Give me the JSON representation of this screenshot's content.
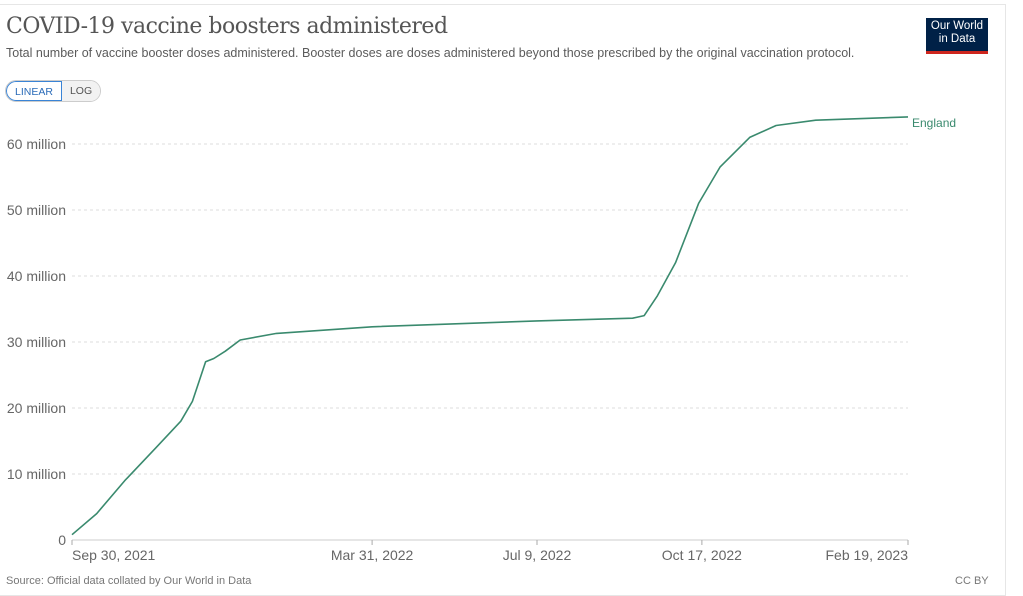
{
  "header": {
    "title": "COVID-19 vaccine boosters administered",
    "subtitle": "Total number of vaccine booster doses administered. Booster doses are doses administered beyond those prescribed by the original vaccination protocol.",
    "logo_line1": "Our World",
    "logo_line2": "in Data"
  },
  "controls": {
    "linear": "LINEAR",
    "log": "LOG"
  },
  "footer": {
    "source": "Source: Official data collated by Our World in Data",
    "license": "CC BY"
  },
  "colors": {
    "series": "#3a8a6e",
    "grid": "#dddddd"
  },
  "chart_data": {
    "type": "line",
    "title": "COVID-19 vaccine boosters administered",
    "xlabel": "",
    "ylabel": "",
    "xlim": [
      "2021-09-30",
      "2023-02-19"
    ],
    "ylim": [
      0,
      64500000
    ],
    "y_ticks": [
      {
        "v": 0,
        "label": "0"
      },
      {
        "v": 10000000,
        "label": "10 million"
      },
      {
        "v": 20000000,
        "label": "20 million"
      },
      {
        "v": 30000000,
        "label": "30 million"
      },
      {
        "v": 40000000,
        "label": "40 million"
      },
      {
        "v": 50000000,
        "label": "50 million"
      },
      {
        "v": 60000000,
        "label": "60 million"
      }
    ],
    "x_ticks": [
      {
        "d": "2021-09-30",
        "label": "Sep 30, 2021"
      },
      {
        "d": "2022-03-31",
        "label": "Mar 31, 2022"
      },
      {
        "d": "2022-07-09",
        "label": "Jul 9, 2022"
      },
      {
        "d": "2022-10-17",
        "label": "Oct 17, 2022"
      },
      {
        "d": "2023-02-19",
        "label": "Feb 19, 2023"
      }
    ],
    "grid": true,
    "series": [
      {
        "name": "England",
        "points": [
          [
            "2021-09-30",
            800000
          ],
          [
            "2021-10-15",
            4000000
          ],
          [
            "2021-11-01",
            9000000
          ],
          [
            "2021-11-20",
            14000000
          ],
          [
            "2021-12-05",
            18000000
          ],
          [
            "2021-12-12",
            21000000
          ],
          [
            "2021-12-20",
            27000000
          ],
          [
            "2021-12-25",
            27500000
          ],
          [
            "2022-01-01",
            28600000
          ],
          [
            "2022-01-10",
            30300000
          ],
          [
            "2022-02-01",
            31300000
          ],
          [
            "2022-03-31",
            32300000
          ],
          [
            "2022-07-09",
            33200000
          ],
          [
            "2022-09-05",
            33600000
          ],
          [
            "2022-09-12",
            34000000
          ],
          [
            "2022-09-20",
            37000000
          ],
          [
            "2022-10-01",
            42000000
          ],
          [
            "2022-10-15",
            51000000
          ],
          [
            "2022-10-28",
            56500000
          ],
          [
            "2022-11-15",
            61000000
          ],
          [
            "2022-12-01",
            62800000
          ],
          [
            "2022-12-25",
            63600000
          ],
          [
            "2023-02-19",
            64100000
          ]
        ]
      }
    ]
  }
}
